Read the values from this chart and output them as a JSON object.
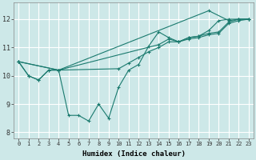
{
  "xlabel": "Humidex (Indice chaleur)",
  "bg_color": "#cde8e8",
  "line_color": "#1a7a6e",
  "grid_color": "#ffffff",
  "xlim": [
    -0.5,
    23.5
  ],
  "ylim": [
    7.8,
    12.6
  ],
  "yticks": [
    8,
    9,
    10,
    11,
    12
  ],
  "xticks": [
    0,
    1,
    2,
    3,
    4,
    5,
    6,
    7,
    8,
    9,
    10,
    11,
    12,
    13,
    14,
    15,
    16,
    17,
    18,
    19,
    20,
    21,
    22,
    23
  ],
  "lines": [
    {
      "x": [
        0,
        1,
        2,
        3,
        4,
        5,
        6,
        7,
        8,
        9,
        10,
        11,
        12,
        13,
        14,
        15,
        16,
        17,
        18,
        19,
        20,
        21,
        22,
        23
      ],
      "y": [
        10.5,
        10.0,
        9.85,
        10.2,
        10.2,
        8.6,
        8.6,
        8.4,
        9.0,
        8.5,
        9.6,
        10.2,
        10.4,
        11.05,
        11.55,
        11.35,
        11.2,
        11.35,
        11.4,
        11.6,
        11.95,
        12.0,
        12.0,
        12.0
      ]
    },
    {
      "x": [
        0,
        1,
        2,
        3,
        4,
        10,
        11,
        12,
        13,
        14,
        15,
        16,
        17,
        18,
        19,
        20,
        21,
        22,
        23
      ],
      "y": [
        10.5,
        10.0,
        9.85,
        10.2,
        10.2,
        10.25,
        10.45,
        10.65,
        10.85,
        11.0,
        11.2,
        11.2,
        11.3,
        11.35,
        11.45,
        11.5,
        11.85,
        11.95,
        12.0
      ]
    },
    {
      "x": [
        0,
        4,
        19,
        21,
        22,
        23
      ],
      "y": [
        10.5,
        10.2,
        12.3,
        11.95,
        12.0,
        12.0
      ]
    },
    {
      "x": [
        0,
        4,
        14,
        15,
        16,
        17,
        18,
        19,
        20,
        21,
        22,
        23
      ],
      "y": [
        10.5,
        10.2,
        11.1,
        11.3,
        11.2,
        11.35,
        11.4,
        11.5,
        11.55,
        11.9,
        12.0,
        12.0
      ]
    }
  ]
}
